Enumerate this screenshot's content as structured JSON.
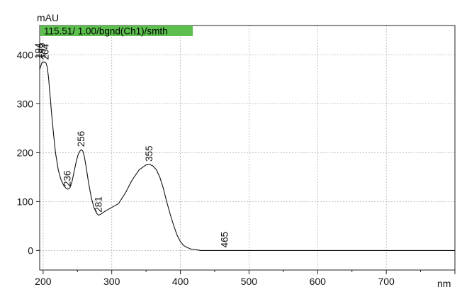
{
  "chart_data": {
    "type": "line",
    "banner": "115.51/ 1.00/bgnd(Ch1)/smth",
    "y_unit": "mAU",
    "x_unit": "nm",
    "xlim": [
      195,
      800
    ],
    "ylim": [
      -40,
      460
    ],
    "x_ticks": [
      200,
      300,
      400,
      500,
      600,
      700
    ],
    "y_ticks": [
      0,
      100,
      200,
      300,
      400
    ],
    "grid": true,
    "accent_color": "#5cbf4e",
    "series": [
      {
        "x": [
          195,
          198,
          200,
          202,
          204,
          206,
          208,
          210,
          212,
          215,
          218,
          222,
          226,
          230,
          233,
          236,
          239,
          242,
          245,
          248,
          251,
          254,
          256,
          258,
          260,
          263,
          266,
          270,
          274,
          278,
          281,
          285,
          290,
          300,
          310,
          320,
          330,
          340,
          350,
          355,
          360,
          365,
          370,
          375,
          380,
          385,
          390,
          395,
          400,
          405,
          410,
          415,
          420,
          425,
          430,
          440,
          450,
          465,
          500,
          600,
          700,
          800
        ],
        "y": [
          370,
          383,
          386,
          385,
          384,
          375,
          352,
          320,
          285,
          240,
          200,
          165,
          145,
          133,
          128,
          125,
          128,
          140,
          160,
          180,
          196,
          204,
          206,
          203,
          192,
          168,
          140,
          110,
          88,
          76,
          72,
          75,
          80,
          88,
          96,
          118,
          145,
          165,
          175,
          176,
          173,
          165,
          150,
          128,
          100,
          75,
          52,
          32,
          18,
          10,
          6,
          3,
          2,
          1,
          0,
          0,
          0,
          0,
          0,
          0,
          0,
          0
        ]
      }
    ],
    "peak_labels": [
      {
        "x": 194,
        "y": 386,
        "text": "194"
      },
      {
        "x": 199,
        "y": 386,
        "text": "199"
      },
      {
        "x": 204,
        "y": 384,
        "text": "204"
      },
      {
        "x": 236,
        "y": 125,
        "text": "236"
      },
      {
        "x": 256,
        "y": 206,
        "text": "256"
      },
      {
        "x": 281,
        "y": 72,
        "text": "281"
      },
      {
        "x": 355,
        "y": 176,
        "text": "355"
      },
      {
        "x": 465,
        "y": 0,
        "text": "465"
      }
    ]
  }
}
